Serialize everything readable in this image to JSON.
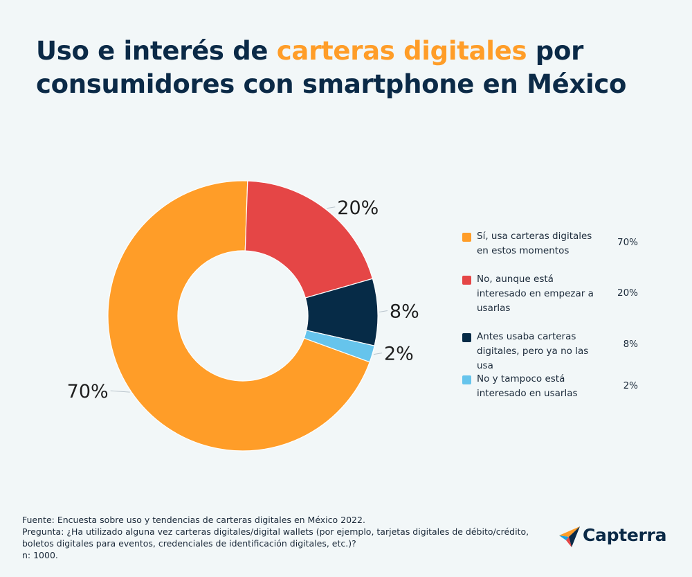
{
  "title": {
    "part1": "Uso e interés de ",
    "highlight": "carteras digitales",
    "part2": " por consumidores con smartphone en México"
  },
  "chart_data": {
    "type": "pie",
    "subtype": "donut",
    "categories": [
      "Sí, usa carteras digitales en estos momentos",
      "No, aunque está interesado en empezar a usarlas",
      "Antes usaba carteras digitales, pero ya no las usa",
      "No y tampoco está interesado en usarlas"
    ],
    "values": [
      70,
      20,
      8,
      2
    ],
    "value_labels": [
      "70%",
      "20%",
      "8%",
      "2%"
    ],
    "colors": [
      "#ff9d28",
      "#e54646",
      "#062b47",
      "#66c4ec"
    ],
    "legend_placement": "right"
  },
  "legend": {
    "items": [
      {
        "label": "Sí, usa carteras digitales en estos momentos",
        "value": "70%",
        "color": "#ff9d28"
      },
      {
        "label": "No, aunque está interesado en empezar a usarlas",
        "value": "20%",
        "color": "#e54646"
      },
      {
        "label": "Antes usaba carteras digitales, pero ya no las usa",
        "value": "8%",
        "color": "#062b47"
      },
      {
        "label": "No y tampoco está interesado en usarlas",
        "value": "2%",
        "color": "#66c4ec"
      }
    ]
  },
  "footer": {
    "source": "Fuente: Encuesta sobre uso y tendencias de carteras digitales en México 2022.",
    "question": "Pregunta: ¿Ha utilizado alguna vez carteras digitales/digital wallets (por ejemplo, tarjetas digitales de débito/crédito, boletos digitales para eventos, credenciales de identificación digitales, etc.)?",
    "n": "n: 1000."
  },
  "brand": {
    "name": "Capterra",
    "icon": "capterra-logo-icon"
  },
  "colors": {
    "accent": "#ff9d28",
    "title": "#0b2a47",
    "background": "#f2f7f8"
  }
}
